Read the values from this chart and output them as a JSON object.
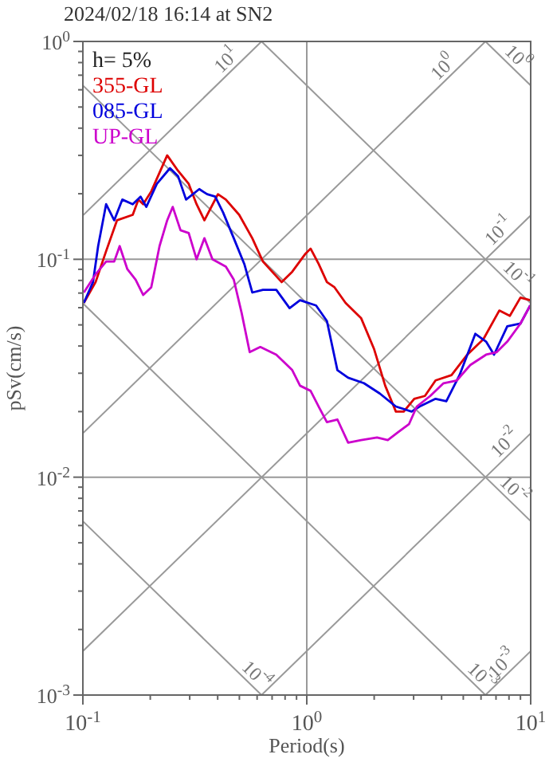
{
  "chart_data": {
    "type": "line",
    "title": "2024/02/18 16:14 at SN2",
    "xlabel": "Period(s)",
    "ylabel": "pSv(cm/s)",
    "log": "xy",
    "grid": true,
    "legend": "top left",
    "line_style": "solid",
    "xlim": [
      0.1,
      10
    ],
    "ylim": [
      0.001,
      1
    ],
    "xticks": [
      {
        "value": 0.1,
        "label": "10$^{-1}$"
      },
      {
        "value": 0.2,
        "label": null
      },
      {
        "value": 0.3,
        "label": null
      },
      {
        "value": 0.4,
        "label": null
      },
      {
        "value": 0.5,
        "label": null
      },
      {
        "value": 0.6,
        "label": null
      },
      {
        "value": 0.7,
        "label": null
      },
      {
        "value": 0.8,
        "label": null
      },
      {
        "value": 0.9,
        "label": null
      },
      {
        "value": 1,
        "label": "10$^{0}$"
      },
      {
        "value": 2,
        "label": null
      },
      {
        "value": 3,
        "label": null
      },
      {
        "value": 4,
        "label": null
      },
      {
        "value": 5,
        "label": null
      },
      {
        "value": 6,
        "label": null
      },
      {
        "value": 7,
        "label": null
      },
      {
        "value": 8,
        "label": null
      },
      {
        "value": 9,
        "label": null
      },
      {
        "value": 10,
        "label": "10$^{1}$"
      }
    ],
    "yticks": [
      {
        "value": 0.001,
        "label": "10$^{-3}$"
      },
      {
        "value": 0.002,
        "label": null
      },
      {
        "value": 0.003,
        "label": null
      },
      {
        "value": 0.004,
        "label": null
      },
      {
        "value": 0.005,
        "label": null
      },
      {
        "value": 0.006,
        "label": null
      },
      {
        "value": 0.007,
        "label": null
      },
      {
        "value": 0.008,
        "label": null
      },
      {
        "value": 0.009,
        "label": null
      },
      {
        "value": 0.01,
        "label": "10$^{-2}$"
      },
      {
        "value": 0.02,
        "label": null
      },
      {
        "value": 0.03,
        "label": null
      },
      {
        "value": 0.04,
        "label": null
      },
      {
        "value": 0.05,
        "label": null
      },
      {
        "value": 0.06,
        "label": null
      },
      {
        "value": 0.07,
        "label": null
      },
      {
        "value": 0.08,
        "label": null
      },
      {
        "value": 0.09,
        "label": null
      },
      {
        "value": 0.1,
        "label": "10$^{-1}$"
      },
      {
        "value": 0.2,
        "label": null
      },
      {
        "value": 0.3,
        "label": null
      },
      {
        "value": 0.4,
        "label": null
      },
      {
        "value": 0.5,
        "label": null
      },
      {
        "value": 0.6,
        "label": null
      },
      {
        "value": 0.7,
        "label": null
      },
      {
        "value": 0.8,
        "label": null
      },
      {
        "value": 0.9,
        "label": null
      },
      {
        "value": 1,
        "label": "10$^{0}$"
      }
    ],
    "series": [
      {
        "color": "#999999",
        "x": [
          0.1,
          0.628
        ],
        "values": [
          0.159,
          1
        ]
      },
      {
        "color": "#999999",
        "x": [
          0.1,
          6.28
        ],
        "values": [
          0.0159,
          1
        ]
      },
      {
        "color": "#999999",
        "x": [
          0.1,
          10
        ],
        "values": [
          0.00159,
          0.159
        ]
      },
      {
        "color": "#999999",
        "x": [
          0.628,
          10
        ],
        "values": [
          0.001,
          0.0159
        ]
      },
      {
        "color": "#999999",
        "x": [
          6.28,
          10
        ],
        "values": [
          0.001,
          0.00159
        ]
      },
      {
        "color": "#999999",
        "x": [
          6.28,
          10
        ],
        "values": [
          1,
          0.628
        ]
      },
      {
        "color": "#999999",
        "x": [
          0.628,
          10
        ],
        "values": [
          1,
          0.0628
        ]
      },
      {
        "color": "#999999",
        "x": [
          0.1,
          10
        ],
        "values": [
          0.628,
          0.00628
        ]
      },
      {
        "color": "#999999",
        "x": [
          0.1,
          6.28
        ],
        "values": [
          0.0628,
          0.001
        ]
      },
      {
        "color": "#999999",
        "x": [
          0.1,
          0.628
        ],
        "values": [
          0.00628,
          0.001
        ]
      },
      {
        "name": "355-GL",
        "color": "#dd0000",
        "x": [
          0.101,
          0.114,
          0.127,
          0.142,
          0.167,
          0.177,
          0.186,
          0.202,
          0.238,
          0.266,
          0.297,
          0.322,
          0.349,
          0.401,
          0.435,
          0.499,
          0.571,
          0.637,
          0.772,
          0.861,
          0.986,
          1.04,
          1.13,
          1.23,
          1.33,
          1.49,
          1.75,
          2.0,
          2.24,
          2.5,
          2.71,
          3.02,
          3.37,
          3.76,
          4.43,
          5.21,
          6.15,
          7.24,
          8.07,
          9.0,
          9.95
        ],
        "values": [
          0.0631,
          0.0786,
          0.109,
          0.151,
          0.16,
          0.188,
          0.179,
          0.205,
          0.3,
          0.255,
          0.222,
          0.179,
          0.151,
          0.199,
          0.188,
          0.16,
          0.125,
          0.0977,
          0.0786,
          0.0877,
          0.106,
          0.112,
          0.0952,
          0.0786,
          0.0744,
          0.0631,
          0.0536,
          0.0386,
          0.0263,
          0.02,
          0.02,
          0.0229,
          0.0236,
          0.0278,
          0.0294,
          0.0365,
          0.043,
          0.0582,
          0.055,
          0.0667,
          0.0649
        ]
      },
      {
        "name": "085-GL",
        "color": "#0000dd",
        "x": [
          0.101,
          0.111,
          0.117,
          0.127,
          0.138,
          0.15,
          0.167,
          0.181,
          0.192,
          0.214,
          0.245,
          0.266,
          0.289,
          0.331,
          0.359,
          0.39,
          0.423,
          0.472,
          0.526,
          0.571,
          0.637,
          0.731,
          0.838,
          0.933,
          1.1,
          1.23,
          1.37,
          1.53,
          1.8,
          2.12,
          2.5,
          2.94,
          3.19,
          3.76,
          4.2,
          4.81,
          5.66,
          6.32,
          6.86,
          7.86,
          9.0,
          9.95
        ],
        "values": [
          0.0631,
          0.0786,
          0.115,
          0.179,
          0.151,
          0.188,
          0.179,
          0.194,
          0.174,
          0.222,
          0.262,
          0.241,
          0.188,
          0.21,
          0.199,
          0.194,
          0.164,
          0.125,
          0.0952,
          0.0704,
          0.0724,
          0.0724,
          0.0597,
          0.0649,
          0.0614,
          0.0521,
          0.031,
          0.0286,
          0.027,
          0.0242,
          0.0211,
          0.02,
          0.0211,
          0.0229,
          0.0223,
          0.0294,
          0.0455,
          0.0419,
          0.0365,
          0.0493,
          0.0507,
          0.0614
        ]
      },
      {
        "name": "UP-GL",
        "color": "#cc00cc",
        "x": [
          0.101,
          0.114,
          0.127,
          0.138,
          0.146,
          0.158,
          0.172,
          0.186,
          0.202,
          0.22,
          0.238,
          0.252,
          0.273,
          0.297,
          0.322,
          0.349,
          0.379,
          0.435,
          0.472,
          0.512,
          0.556,
          0.62,
          0.731,
          0.861,
          0.933,
          1.04,
          1.13,
          1.23,
          1.37,
          1.53,
          1.75,
          2.06,
          2.3,
          2.56,
          2.86,
          3.1,
          3.56,
          4.08,
          4.68,
          5.37,
          6.32,
          7.05,
          7.86,
          9.0,
          9.95
        ],
        "values": [
          0.0704,
          0.0853,
          0.0977,
          0.0977,
          0.115,
          0.0901,
          0.0807,
          0.0686,
          0.0744,
          0.115,
          0.151,
          0.174,
          0.136,
          0.132,
          0.1,
          0.125,
          0.1,
          0.0926,
          0.0807,
          0.0566,
          0.0375,
          0.0396,
          0.0365,
          0.031,
          0.0263,
          0.0249,
          0.0211,
          0.0179,
          0.0184,
          0.0144,
          0.0148,
          0.0152,
          0.0148,
          0.0161,
          0.0175,
          0.0211,
          0.0236,
          0.027,
          0.0278,
          0.0327,
          0.0365,
          0.0375,
          0.0419,
          0.0507,
          0.0614
        ]
      }
    ],
    "annotations": [
      "h= 5%",
      {
        "text": "10$^{1}$",
        "x": 0.474,
        "y": 0.755
      },
      {
        "text": "10$^{0}$",
        "x": 4.4,
        "y": 0.7
      },
      {
        "text": "10$^{0}$",
        "x": 8.07,
        "y": 0.779
      },
      {
        "text": "10$^{-1}$",
        "x": 7.8,
        "y": 0.124
      },
      {
        "text": "10$^{-1}$",
        "x": 8.07,
        "y": 0.0779
      },
      {
        "text": "10$^{-2}$",
        "x": 8.3,
        "y": 0.0132
      },
      {
        "text": "10$^{-2}$",
        "x": 7.8,
        "y": 0.00805
      },
      {
        "text": "10$^{-4}$",
        "x": 0.55,
        "y": 0.00114
      },
      {
        "text": "10$^{-3}$",
        "x": 5.6,
        "y": 0.00112
      },
      {
        "text": "10$^{-3}$",
        "x": 8.07,
        "y": 0.00128
      }
    ]
  }
}
